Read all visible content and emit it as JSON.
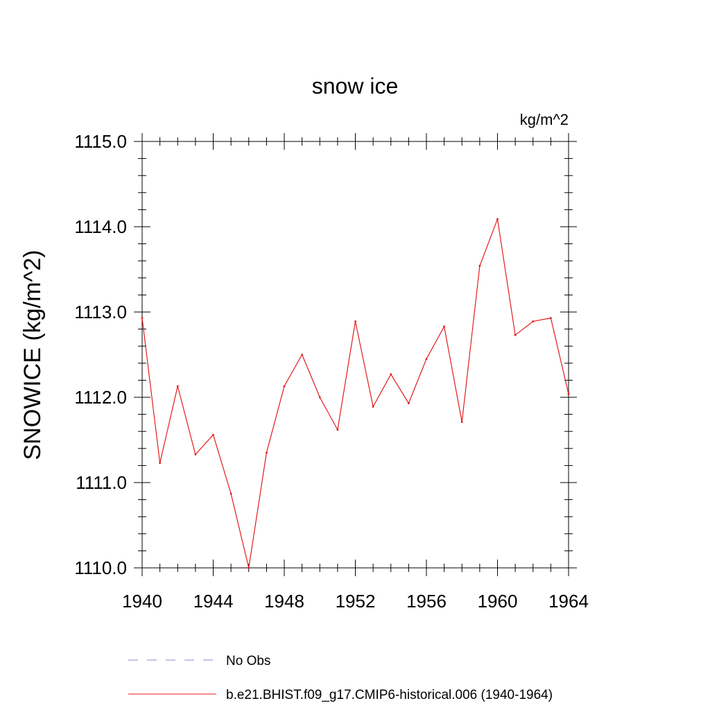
{
  "chart_data": {
    "type": "line",
    "title": "snow ice",
    "units": "kg/m^2",
    "ylabel": "SNOWICE  (kg/m^2)",
    "xlabel": "",
    "xlim": [
      1940,
      1964
    ],
    "ylim": [
      1110.0,
      1115.0
    ],
    "xticks": [
      1940,
      1944,
      1948,
      1952,
      1956,
      1960,
      1964
    ],
    "yticks": [
      "1110.0",
      "1111.0",
      "1112.0",
      "1113.0",
      "1114.0",
      "1115.0"
    ],
    "grid": false,
    "legend_position": "bottom",
    "legend": [
      {
        "label": "No Obs",
        "style": "dashed",
        "color": "#8a8ad0"
      },
      {
        "label": "b.e21.BHIST.f09_g17.CMIP6-historical.006 (1940-1964)",
        "style": "solid",
        "color": "#e31a1c"
      }
    ],
    "series": [
      {
        "name": "b.e21.BHIST.f09_g17.CMIP6-historical.006 (1940-1964)",
        "color": "#e31a1c",
        "x": [
          1940,
          1941,
          1942,
          1943,
          1944,
          1945,
          1946,
          1947,
          1948,
          1949,
          1950,
          1951,
          1952,
          1953,
          1954,
          1955,
          1956,
          1957,
          1958,
          1959,
          1960,
          1961,
          1962,
          1963,
          1964
        ],
        "y": [
          1112.93,
          1111.23,
          1112.13,
          1111.33,
          1111.56,
          1110.87,
          1110.0,
          1111.35,
          1112.13,
          1112.5,
          1112.0,
          1111.62,
          1112.89,
          1111.89,
          1112.27,
          1111.93,
          1112.45,
          1112.83,
          1111.71,
          1113.54,
          1114.09,
          1112.73,
          1112.89,
          1112.93,
          1112.04
        ]
      }
    ]
  }
}
